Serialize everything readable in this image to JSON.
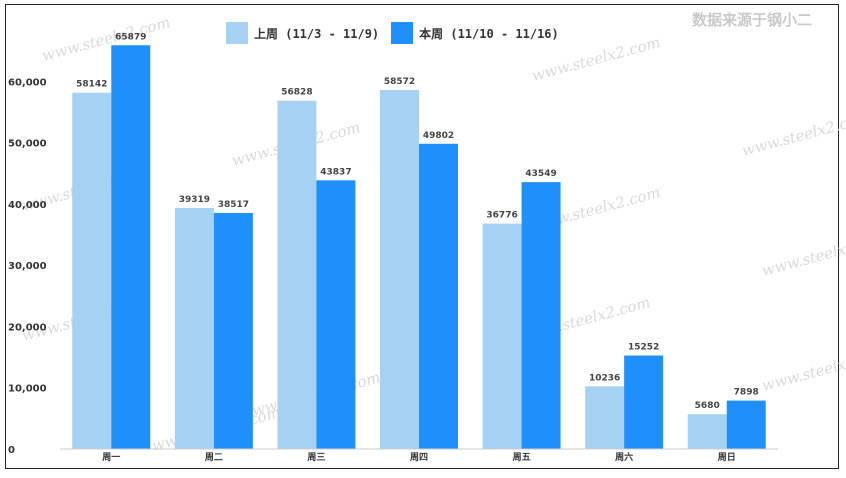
{
  "source_note": "数据来源于钢小二",
  "watermark_text": "www.steelx2.com",
  "footnote": "",
  "colors": {
    "last_week": "#a6d1f3",
    "this_week": "#1f8ff9",
    "axis_line": "#cccccc",
    "text": "#333333"
  },
  "chart_data": {
    "type": "bar",
    "title": "",
    "xlabel": "",
    "ylabel": "",
    "ylim": [
      0,
      70000
    ],
    "yticks": [
      0,
      10000,
      20000,
      30000,
      40000,
      50000,
      60000
    ],
    "ytick_labels": [
      "0",
      "10,000",
      "20,000",
      "30,000",
      "40,000",
      "50,000",
      "60,000"
    ],
    "grid": false,
    "legend_position": "top-center",
    "categories": [
      "周一",
      "周二",
      "周三",
      "周四",
      "周五",
      "周六",
      "周日"
    ],
    "series": [
      {
        "name": "上周 (11/3 - 11/9)",
        "color": "#a6d1f3",
        "values": [
          58142,
          39319,
          56828,
          58572,
          36776,
          10236,
          5680
        ]
      },
      {
        "name": "本周 (11/10 - 11/16)",
        "color": "#1f8ff9",
        "values": [
          65879,
          38517,
          43837,
          49802,
          43549,
          15252,
          7898
        ]
      }
    ]
  }
}
